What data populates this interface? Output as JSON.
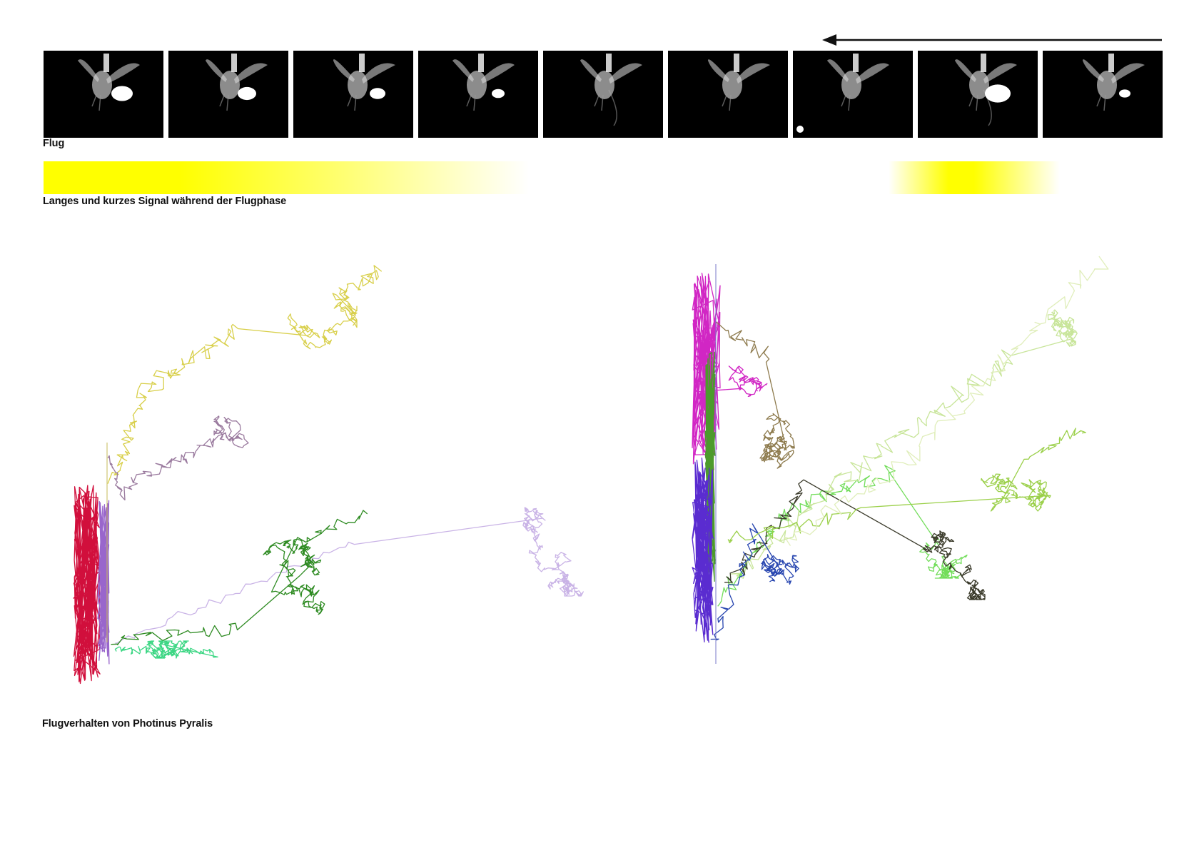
{
  "labels": {
    "flight": "Flug",
    "signal_caption": "Langes und kurzes Signal während der Flugphase",
    "behavior_caption": "Flugverhalten von Photinus Pyralis"
  },
  "direction_arrow": "arrow-left-icon",
  "frame_count": 9,
  "signal_color": "#ffff00",
  "track_colors_left": [
    "#d8cf4a",
    "#9a7a9e",
    "#d10f3c",
    "#9966cc",
    "#c9b3e6",
    "#2e8b22",
    "#3bd683"
  ],
  "track_colors_right": [
    "#d126c4",
    "#4c9b2c",
    "#8e7b4e",
    "#72dd5a",
    "#c8e59a",
    "#3a3a2a",
    "#2846b0",
    "#5a2cd0",
    "#9bd04a",
    "#e0eebb"
  ]
}
